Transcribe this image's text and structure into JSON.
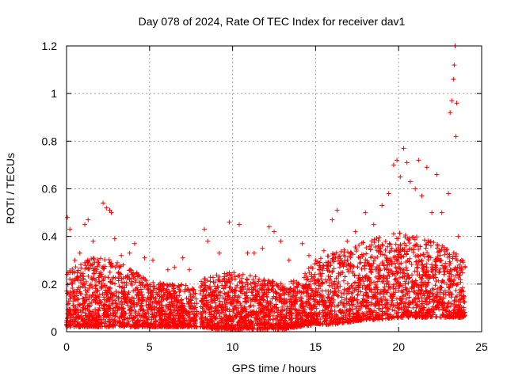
{
  "chart_data": {
    "type": "scatter",
    "title": "Day 078 of 2024, Rate Of TEC Index for receiver dav1",
    "xlabel": "GPS time / hours",
    "ylabel": "ROTI / TECUs",
    "xlim": [
      0,
      25
    ],
    "ylim": [
      0,
      1.2
    ],
    "x_ticks": [
      0,
      5,
      10,
      15,
      20,
      25
    ],
    "x_tick_labels": [
      "0",
      "5",
      "10",
      "15",
      "20",
      "25"
    ],
    "y_ticks": [
      0,
      0.2,
      0.4,
      0.6,
      0.8,
      1.0,
      1.2
    ],
    "y_tick_labels": [
      "0",
      "0.2",
      "0.4",
      "0.6",
      "0.8",
      "1",
      "1.2"
    ],
    "grid": true,
    "marker": "+",
    "color": "#ff0000",
    "series": [
      {
        "name": "ROTI",
        "points": [
          [
            0.05,
            0.48
          ],
          [
            0.2,
            0.43
          ],
          [
            0.5,
            0.3
          ],
          [
            0.8,
            0.33
          ],
          [
            1.1,
            0.45
          ],
          [
            1.3,
            0.47
          ],
          [
            1.6,
            0.38
          ],
          [
            2.2,
            0.54
          ],
          [
            2.4,
            0.52
          ],
          [
            2.6,
            0.51
          ],
          [
            2.7,
            0.5
          ],
          [
            2.9,
            0.39
          ],
          [
            3.3,
            0.32
          ],
          [
            3.8,
            0.33
          ],
          [
            4.1,
            0.37
          ],
          [
            4.7,
            0.31
          ],
          [
            5.2,
            0.3
          ],
          [
            6.1,
            0.26
          ],
          [
            6.5,
            0.27
          ],
          [
            7.0,
            0.31
          ],
          [
            7.4,
            0.26
          ],
          [
            8.3,
            0.43
          ],
          [
            8.5,
            0.38
          ],
          [
            9.2,
            0.33
          ],
          [
            9.8,
            0.46
          ],
          [
            10.4,
            0.45
          ],
          [
            10.9,
            0.33
          ],
          [
            11.3,
            0.33
          ],
          [
            11.8,
            0.35
          ],
          [
            12.2,
            0.44
          ],
          [
            12.5,
            0.42
          ],
          [
            12.9,
            0.38
          ],
          [
            13.4,
            0.3
          ],
          [
            14.2,
            0.37
          ],
          [
            14.6,
            0.32
          ],
          [
            15.0,
            0.3
          ],
          [
            15.5,
            0.34
          ],
          [
            16.0,
            0.47
          ],
          [
            16.3,
            0.51
          ],
          [
            16.9,
            0.38
          ],
          [
            17.4,
            0.42
          ],
          [
            18.0,
            0.5
          ],
          [
            18.5,
            0.45
          ],
          [
            19.0,
            0.53
          ],
          [
            19.4,
            0.58
          ],
          [
            19.7,
            0.7
          ],
          [
            19.9,
            0.72
          ],
          [
            20.1,
            0.65
          ],
          [
            20.3,
            0.77
          ],
          [
            20.5,
            0.71
          ],
          [
            20.7,
            0.63
          ],
          [
            21.0,
            0.6
          ],
          [
            21.2,
            0.72
          ],
          [
            21.4,
            0.57
          ],
          [
            21.7,
            0.69
          ],
          [
            22.0,
            0.5
          ],
          [
            22.3,
            0.66
          ],
          [
            22.6,
            0.5
          ],
          [
            23.0,
            0.58
          ],
          [
            23.1,
            0.92
          ],
          [
            23.2,
            0.97
          ],
          [
            23.3,
            1.06
          ],
          [
            23.35,
            1.12
          ],
          [
            23.4,
            1.2
          ],
          [
            23.45,
            0.82
          ],
          [
            23.5,
            0.96
          ],
          [
            23.6,
            0.4
          ],
          [
            23.8,
            0.3
          ],
          [
            24.0,
            0.27
          ]
        ],
        "density_envelope": {
          "x": [
            0,
            1,
            2,
            3,
            4,
            5,
            6,
            7,
            7.8,
            8.1,
            9,
            10,
            11,
            12,
            13,
            14,
            15,
            16,
            17,
            18,
            19,
            20,
            21,
            22,
            23,
            24
          ],
          "y_low": [
            0.02,
            0.02,
            0.02,
            0.02,
            0.02,
            0.02,
            0.02,
            0.02,
            0.02,
            0.02,
            0.01,
            0.01,
            0.01,
            0.01,
            0.01,
            0.02,
            0.03,
            0.03,
            0.04,
            0.05,
            0.05,
            0.06,
            0.06,
            0.06,
            0.06,
            0.06
          ],
          "y_high": [
            0.25,
            0.3,
            0.32,
            0.3,
            0.26,
            0.22,
            0.2,
            0.2,
            0.18,
            0.22,
            0.24,
            0.25,
            0.24,
            0.22,
            0.2,
            0.22,
            0.3,
            0.33,
            0.35,
            0.38,
            0.4,
            0.42,
            0.4,
            0.38,
            0.35,
            0.3
          ]
        }
      }
    ]
  }
}
